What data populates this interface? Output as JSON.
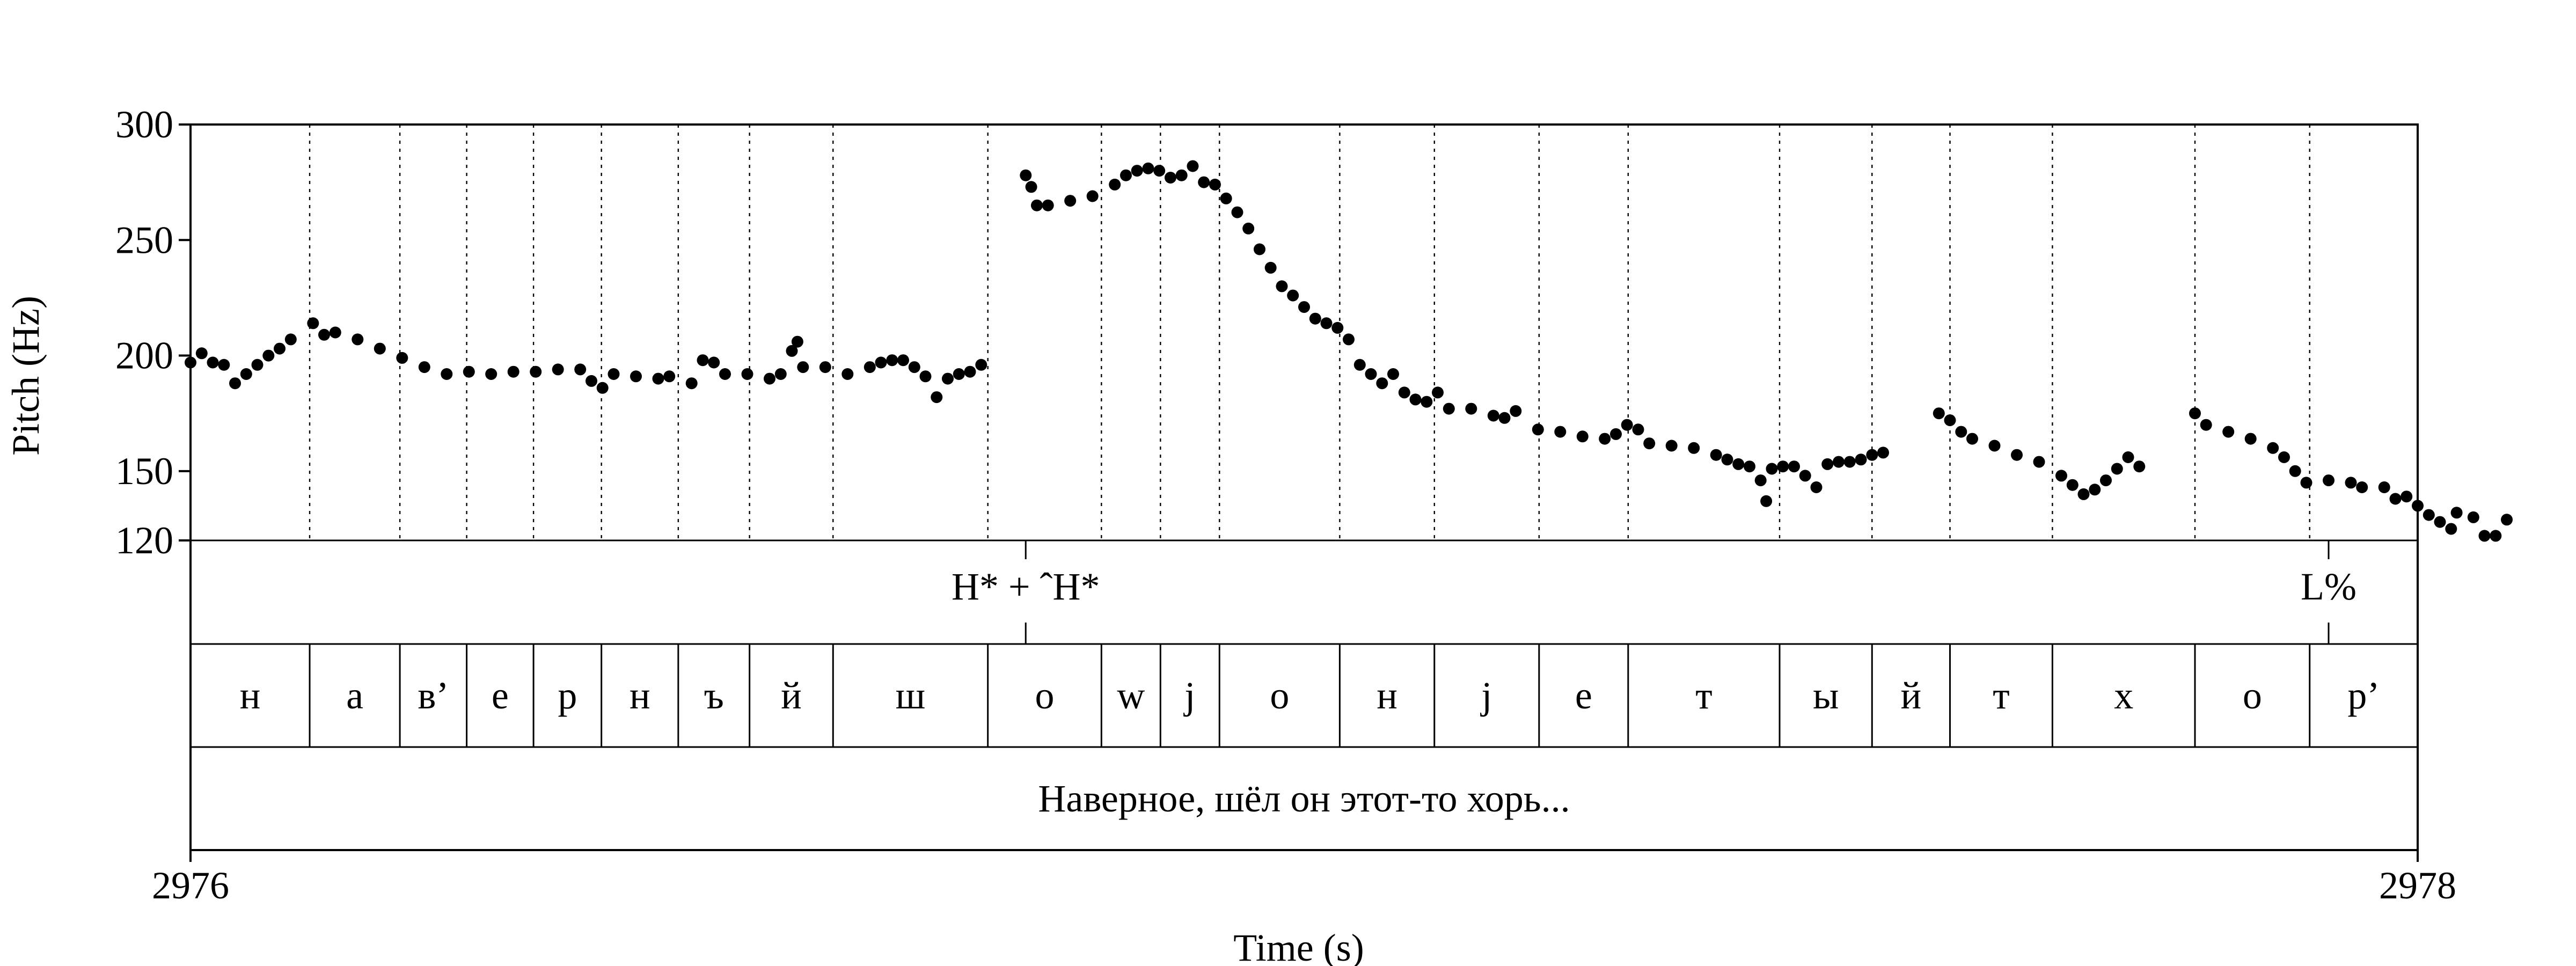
{
  "chart_data": {
    "type": "scatter",
    "xlabel": "Time (s)",
    "ylabel": "Pitch (Hz)",
    "xlim": [
      2976,
      2978
    ],
    "ylim": [
      120,
      300
    ],
    "x_tick_labels": [
      "2976",
      "2978"
    ],
    "y_ticks": [
      300,
      250,
      200,
      150,
      120
    ],
    "pitch_segments": [
      [
        [
          2976.0,
          197
        ],
        [
          2976.01,
          201
        ],
        [
          2976.02,
          197
        ],
        [
          2976.03,
          196
        ],
        [
          2976.04,
          188
        ],
        [
          2976.05,
          192
        ],
        [
          2976.06,
          196
        ],
        [
          2976.07,
          200
        ],
        [
          2976.08,
          203
        ],
        [
          2976.09,
          207
        ],
        [
          2976.11,
          214
        ],
        [
          2976.12,
          209
        ],
        [
          2976.13,
          210
        ],
        [
          2976.15,
          207
        ],
        [
          2976.17,
          203
        ],
        [
          2976.19,
          199
        ],
        [
          2976.21,
          195
        ],
        [
          2976.23,
          192
        ],
        [
          2976.25,
          193
        ],
        [
          2976.27,
          192
        ],
        [
          2976.29,
          193
        ],
        [
          2976.31,
          193
        ],
        [
          2976.33,
          194
        ],
        [
          2976.35,
          194
        ],
        [
          2976.36,
          189
        ],
        [
          2976.37,
          186
        ],
        [
          2976.38,
          192
        ],
        [
          2976.4,
          191
        ],
        [
          2976.42,
          190
        ],
        [
          2976.43,
          191
        ],
        [
          2976.45,
          188
        ],
        [
          2976.46,
          198
        ],
        [
          2976.47,
          197
        ],
        [
          2976.48,
          192
        ],
        [
          2976.5,
          192
        ],
        [
          2976.52,
          190
        ],
        [
          2976.53,
          192
        ],
        [
          2976.54,
          202
        ],
        [
          2976.545,
          206
        ],
        [
          2976.55,
          195
        ],
        [
          2976.57,
          195
        ],
        [
          2976.59,
          192
        ],
        [
          2976.61,
          195
        ],
        [
          2976.62,
          197
        ],
        [
          2976.63,
          198
        ],
        [
          2976.64,
          198
        ],
        [
          2976.65,
          195
        ],
        [
          2976.66,
          191
        ],
        [
          2976.67,
          182
        ],
        [
          2976.68,
          190
        ],
        [
          2976.69,
          192
        ],
        [
          2976.7,
          193
        ],
        [
          2976.71,
          196
        ]
      ],
      [
        [
          2976.75,
          278
        ],
        [
          2976.755,
          273
        ],
        [
          2976.76,
          265
        ],
        [
          2976.77,
          265
        ],
        [
          2976.79,
          267
        ],
        [
          2976.81,
          269
        ],
        [
          2976.83,
          274
        ],
        [
          2976.84,
          278
        ],
        [
          2976.85,
          280
        ],
        [
          2976.86,
          281
        ],
        [
          2976.87,
          280
        ],
        [
          2976.88,
          277
        ],
        [
          2976.89,
          278
        ],
        [
          2976.9,
          282
        ],
        [
          2976.91,
          275
        ],
        [
          2976.92,
          274
        ],
        [
          2976.93,
          268
        ],
        [
          2976.94,
          262
        ],
        [
          2976.95,
          255
        ],
        [
          2976.96,
          246
        ],
        [
          2976.97,
          238
        ],
        [
          2976.98,
          230
        ],
        [
          2976.99,
          226
        ],
        [
          2977.0,
          221
        ],
        [
          2977.01,
          216
        ],
        [
          2977.02,
          214
        ],
        [
          2977.03,
          212
        ],
        [
          2977.04,
          207
        ],
        [
          2977.05,
          196
        ],
        [
          2977.06,
          192
        ],
        [
          2977.07,
          188
        ],
        [
          2977.08,
          192
        ],
        [
          2977.09,
          184
        ],
        [
          2977.1,
          181
        ],
        [
          2977.11,
          180
        ],
        [
          2977.12,
          184
        ],
        [
          2977.13,
          177
        ],
        [
          2977.15,
          177
        ],
        [
          2977.17,
          174
        ],
        [
          2977.18,
          173
        ],
        [
          2977.19,
          176
        ],
        [
          2977.21,
          168
        ],
        [
          2977.23,
          167
        ],
        [
          2977.25,
          165
        ],
        [
          2977.27,
          164
        ],
        [
          2977.28,
          166
        ],
        [
          2977.29,
          170
        ],
        [
          2977.3,
          168
        ],
        [
          2977.31,
          162
        ],
        [
          2977.33,
          161
        ],
        [
          2977.35,
          160
        ],
        [
          2977.37,
          157
        ],
        [
          2977.38,
          155
        ],
        [
          2977.39,
          153
        ],
        [
          2977.4,
          152
        ],
        [
          2977.41,
          146
        ],
        [
          2977.415,
          137
        ],
        [
          2977.42,
          151
        ],
        [
          2977.43,
          152
        ],
        [
          2977.44,
          152
        ],
        [
          2977.45,
          148
        ],
        [
          2977.46,
          143
        ],
        [
          2977.47,
          153
        ],
        [
          2977.48,
          154
        ],
        [
          2977.49,
          154
        ],
        [
          2977.5,
          155
        ],
        [
          2977.51,
          157
        ],
        [
          2977.52,
          158
        ]
      ],
      [
        [
          2977.57,
          175
        ],
        [
          2977.58,
          172
        ],
        [
          2977.59,
          167
        ],
        [
          2977.6,
          164
        ],
        [
          2977.62,
          161
        ],
        [
          2977.64,
          157
        ],
        [
          2977.66,
          154
        ],
        [
          2977.68,
          148
        ],
        [
          2977.69,
          144
        ],
        [
          2977.7,
          140
        ],
        [
          2977.71,
          142
        ],
        [
          2977.72,
          146
        ],
        [
          2977.73,
          151
        ],
        [
          2977.74,
          156
        ],
        [
          2977.75,
          152
        ]
      ],
      [
        [
          2977.8,
          175
        ],
        [
          2977.81,
          170
        ],
        [
          2977.83,
          167
        ],
        [
          2977.85,
          164
        ],
        [
          2977.87,
          160
        ],
        [
          2977.88,
          156
        ],
        [
          2977.89,
          150
        ],
        [
          2977.9,
          145
        ],
        [
          2977.92,
          146
        ],
        [
          2977.94,
          145
        ],
        [
          2977.95,
          143
        ],
        [
          2977.97,
          143
        ],
        [
          2977.98,
          138
        ],
        [
          2977.99,
          139
        ],
        [
          2978.0,
          135
        ],
        [
          2978.01,
          131
        ],
        [
          2978.02,
          128
        ],
        [
          2978.03,
          125
        ],
        [
          2978.035,
          132
        ],
        [
          2978.05,
          130
        ],
        [
          2978.06,
          122
        ],
        [
          2978.07,
          122
        ],
        [
          2978.08,
          129
        ]
      ]
    ]
  },
  "tiers": {
    "tones": [
      {
        "label": "H* + ˆH*",
        "time": 2976.75
      },
      {
        "label": "L%",
        "time": 2977.92
      }
    ],
    "segments": [
      {
        "label": "н",
        "start": 2976.0,
        "end": 2976.107
      },
      {
        "label": "а",
        "start": 2976.107,
        "end": 2976.188
      },
      {
        "label": "в’",
        "start": 2976.188,
        "end": 2976.248
      },
      {
        "label": "е",
        "start": 2976.248,
        "end": 2976.308
      },
      {
        "label": "р",
        "start": 2976.308,
        "end": 2976.369
      },
      {
        "label": "н",
        "start": 2976.369,
        "end": 2976.438
      },
      {
        "label": "ъ",
        "start": 2976.438,
        "end": 2976.502
      },
      {
        "label": "й",
        "start": 2976.502,
        "end": 2976.577
      },
      {
        "label": "ш",
        "start": 2976.577,
        "end": 2976.716
      },
      {
        "label": "о",
        "start": 2976.716,
        "end": 2976.818
      },
      {
        "label": "w",
        "start": 2976.818,
        "end": 2976.871
      },
      {
        "label": "j",
        "start": 2976.871,
        "end": 2976.924
      },
      {
        "label": "о",
        "start": 2976.924,
        "end": 2977.032
      },
      {
        "label": "н",
        "start": 2977.032,
        "end": 2977.117
      },
      {
        "label": "j",
        "start": 2977.117,
        "end": 2977.211
      },
      {
        "label": "е",
        "start": 2977.211,
        "end": 2977.291
      },
      {
        "label": "т",
        "start": 2977.291,
        "end": 2977.427
      },
      {
        "label": "ы",
        "start": 2977.427,
        "end": 2977.51
      },
      {
        "label": "й",
        "start": 2977.51,
        "end": 2977.58
      },
      {
        "label": "т",
        "start": 2977.58,
        "end": 2977.672
      },
      {
        "label": "х",
        "start": 2977.672,
        "end": 2977.8
      },
      {
        "label": "о",
        "start": 2977.8,
        "end": 2977.903
      },
      {
        "label": "р’",
        "start": 2977.903,
        "end": 2978.0
      }
    ],
    "utterance": "Наверное, шёл он этот-то хорь..."
  }
}
